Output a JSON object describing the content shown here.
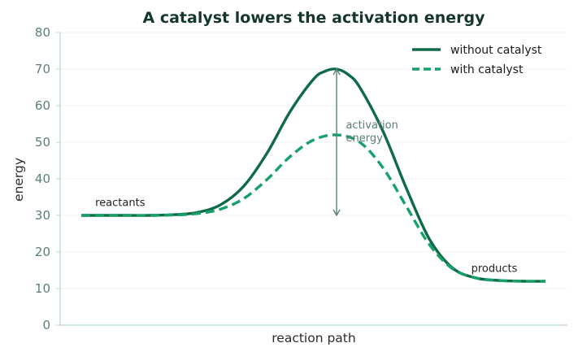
{
  "chart_data": {
    "type": "line",
    "title": "A catalyst lowers the activation energy",
    "xlabel": "reaction path",
    "ylabel": "energy",
    "ylim": [
      0,
      80
    ],
    "yticks": [
      0,
      10,
      20,
      30,
      40,
      50,
      60,
      70,
      80
    ],
    "xticks": [],
    "grid": true,
    "legend_position": "top-right",
    "series": [
      {
        "name": "without catalyst",
        "style": "solid",
        "color": "#0e6b47",
        "points": [
          [
            0,
            30.0
          ],
          [
            0.05,
            30.0
          ],
          [
            0.1,
            30.0
          ],
          [
            0.15,
            30.0
          ],
          [
            0.2,
            30.2
          ],
          [
            0.25,
            30.8
          ],
          [
            0.3,
            32.9
          ],
          [
            0.35,
            38.0
          ],
          [
            0.4,
            47.0
          ],
          [
            0.45,
            58.4
          ],
          [
            0.5,
            67.2
          ],
          [
            0.525,
            69.4
          ],
          [
            0.55,
            70.0
          ],
          [
            0.575,
            68.5
          ],
          [
            0.6,
            65.0
          ],
          [
            0.65,
            53.0
          ],
          [
            0.7,
            37.5
          ],
          [
            0.75,
            23.5
          ],
          [
            0.8,
            15.6
          ],
          [
            0.85,
            12.9
          ],
          [
            0.9,
            12.2
          ],
          [
            0.95,
            12.0
          ],
          [
            1.0,
            12.0
          ]
        ]
      },
      {
        "name": "with catalyst",
        "style": "dashed",
        "color": "#17a06a",
        "points": [
          [
            0,
            30.0
          ],
          [
            0.05,
            30.0
          ],
          [
            0.1,
            30.0
          ],
          [
            0.15,
            30.0
          ],
          [
            0.2,
            30.1
          ],
          [
            0.25,
            30.5
          ],
          [
            0.3,
            31.7
          ],
          [
            0.35,
            34.6
          ],
          [
            0.4,
            39.8
          ],
          [
            0.45,
            46.1
          ],
          [
            0.5,
            50.6
          ],
          [
            0.55,
            52.0
          ],
          [
            0.6,
            50.0
          ],
          [
            0.65,
            43.0
          ],
          [
            0.7,
            32.5
          ],
          [
            0.75,
            22.0
          ],
          [
            0.8,
            15.4
          ],
          [
            0.85,
            12.9
          ],
          [
            0.9,
            12.2
          ],
          [
            0.95,
            12.0
          ],
          [
            1.0,
            12.0
          ]
        ]
      }
    ],
    "annotations": {
      "reactants": "reactants",
      "products": "products",
      "activation_line1": "activation",
      "activation_line2": "energy"
    },
    "activation_arrow": {
      "x": 0.55,
      "from": 30,
      "to": 70
    },
    "annotation_anchor": {
      "reactants": [
        0.03,
        33
      ],
      "products": [
        0.84,
        15
      ],
      "activation": [
        0.57,
        54
      ]
    }
  }
}
